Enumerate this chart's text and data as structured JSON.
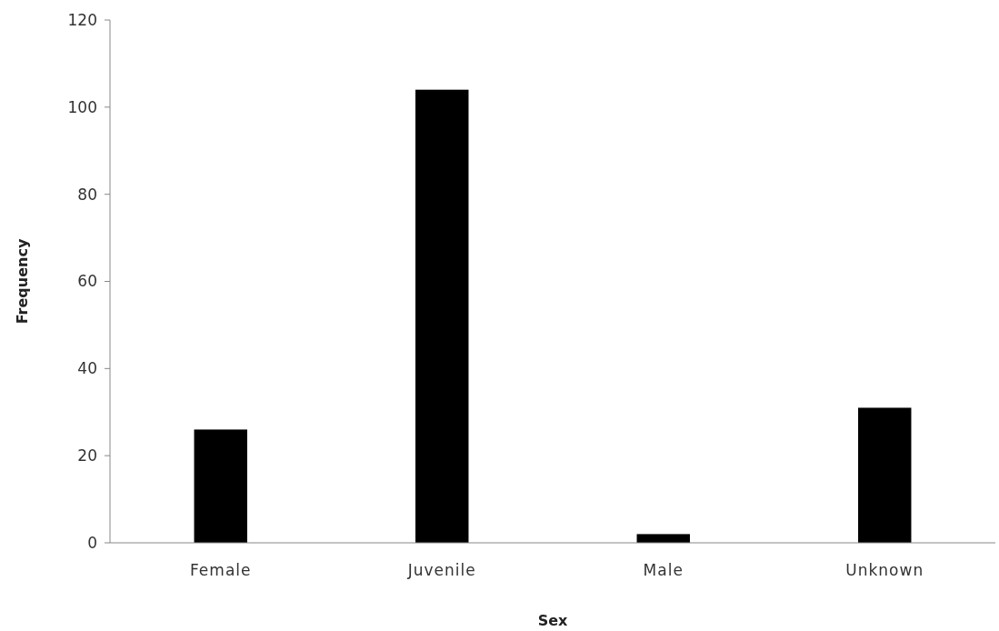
{
  "chart_data": {
    "type": "bar",
    "xlabel": "Sex",
    "ylabel": "Frequency",
    "categories": [
      "Female",
      "Juvenile",
      "Male",
      "Unknown"
    ],
    "values": [
      26,
      104,
      2,
      31
    ],
    "color": "#000000",
    "ylim": [
      0,
      120
    ],
    "yticks": [
      0,
      20,
      40,
      60,
      80,
      100,
      120
    ],
    "grid": false
  }
}
